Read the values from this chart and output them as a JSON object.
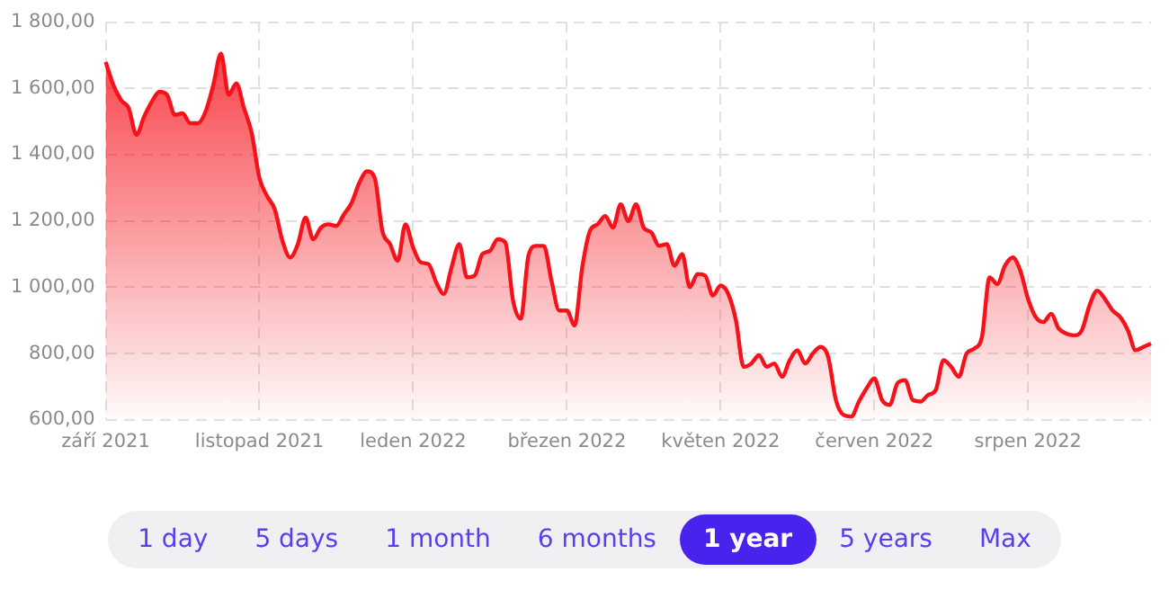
{
  "chart_data": {
    "type": "area",
    "categories": [
      "září 2021",
      null,
      null,
      null,
      null,
      null,
      null,
      null,
      null,
      null,
      null,
      null,
      null,
      null,
      null,
      null,
      null,
      null,
      null,
      null,
      "listopad 2021",
      null,
      null,
      null,
      null,
      null,
      null,
      null,
      null,
      null,
      null,
      null,
      null,
      null,
      null,
      null,
      null,
      null,
      null,
      null,
      "leden 2022",
      null,
      null,
      null,
      null,
      null,
      null,
      null,
      null,
      null,
      null,
      null,
      null,
      null,
      null,
      null,
      null,
      null,
      null,
      null,
      "březen 2022",
      null,
      null,
      null,
      null,
      null,
      null,
      null,
      null,
      null,
      null,
      null,
      null,
      null,
      null,
      null,
      null,
      null,
      null,
      null,
      "květen 2022",
      null,
      null,
      null,
      null,
      null,
      null,
      null,
      null,
      null,
      null,
      null,
      null,
      null,
      null,
      null,
      null,
      null,
      null,
      null,
      "červen 2022",
      null,
      null,
      null,
      null,
      null,
      null,
      null,
      null,
      null,
      null,
      null,
      null,
      null,
      null,
      null,
      null,
      null,
      null,
      null,
      "srpen 2022",
      null,
      null,
      null,
      null,
      null,
      null,
      null,
      null,
      null,
      null,
      null,
      null,
      null,
      null,
      null,
      null
    ],
    "series": [
      {
        "color": "#f5121b",
        "values": [
          1680,
          1610,
          1565,
          1540,
          1460,
          1515,
          1560,
          1590,
          1580,
          1520,
          1525,
          1495,
          1495,
          1530,
          1610,
          1705,
          1580,
          1615,
          1540,
          1465,
          1330,
          1275,
          1235,
          1140,
          1090,
          1130,
          1210,
          1145,
          1180,
          1190,
          1185,
          1220,
          1255,
          1315,
          1350,
          1330,
          1170,
          1130,
          1080,
          1190,
          1120,
          1075,
          1070,
          1015,
          980,
          1060,
          1130,
          1030,
          1035,
          1100,
          1110,
          1145,
          1135,
          960,
          905,
          1095,
          1125,
          1125,
          1020,
          930,
          930,
          885,
          1060,
          1170,
          1190,
          1215,
          1180,
          1250,
          1200,
          1250,
          1180,
          1165,
          1125,
          1130,
          1065,
          1100,
          1000,
          1040,
          1035,
          975,
          1005,
          980,
          900,
          760,
          770,
          795,
          760,
          770,
          730,
          780,
          810,
          770,
          800,
          820,
          790,
          660,
          615,
          610,
          655,
          695,
          725,
          660,
          645,
          710,
          720,
          660,
          655,
          675,
          690,
          780,
          760,
          730,
          800,
          815,
          850,
          1030,
          1010,
          1065,
          1090,
          1050,
          965,
          910,
          895,
          920,
          875,
          860,
          855,
          870,
          945,
          990,
          965,
          930,
          910,
          870,
          810,
          820,
          830
        ]
      }
    ],
    "ylim": [
      600,
      1800
    ],
    "yticks": [
      {
        "value": 600,
        "label": "600,00"
      },
      {
        "value": 800,
        "label": "800,00"
      },
      {
        "value": 1000,
        "label": "1 000,00"
      },
      {
        "value": 1200,
        "label": "1 200,00"
      },
      {
        "value": 1400,
        "label": "1 400,00"
      },
      {
        "value": 1600,
        "label": "1 600,00"
      },
      {
        "value": 1800,
        "label": "1 800,00"
      }
    ],
    "grid": true,
    "legend": false,
    "marker": "none",
    "line_style": "solid",
    "annotations": [
      "1 day",
      "5 days",
      "1 month",
      "6 months",
      "1 year",
      "5 years",
      "Max"
    ]
  }
}
